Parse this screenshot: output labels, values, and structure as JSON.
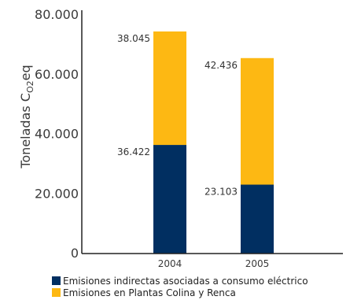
{
  "colors": {
    "series_0": "#012f61",
    "series_1": "#fdb813",
    "axis": "#222222"
  },
  "chart_data": {
    "type": "bar",
    "stacked": true,
    "categories": [
      "2004",
      "2005"
    ],
    "series": [
      {
        "name": "Emisiones indirectas asociadas a consumo eléctrico",
        "values": [
          36422,
          23103
        ],
        "labels": [
          "36.422",
          "23.103"
        ]
      },
      {
        "name": "Emisiones en Plantas Colina y Renca",
        "values": [
          38045,
          42436
        ],
        "labels": [
          "38.045",
          "42.436"
        ]
      }
    ],
    "yticks": [
      0,
      20000,
      40000,
      60000,
      80000
    ],
    "ytick_labels": [
      "0",
      "20.000",
      "40.000",
      "60.000",
      "80.000"
    ],
    "ylim": [
      0,
      80000
    ],
    "ylabel": {
      "main": "Toneladas C",
      "sub": "O2",
      "suffix": "eq"
    },
    "xlabel": "",
    "title": "",
    "grid": false,
    "legend": "bottom"
  }
}
